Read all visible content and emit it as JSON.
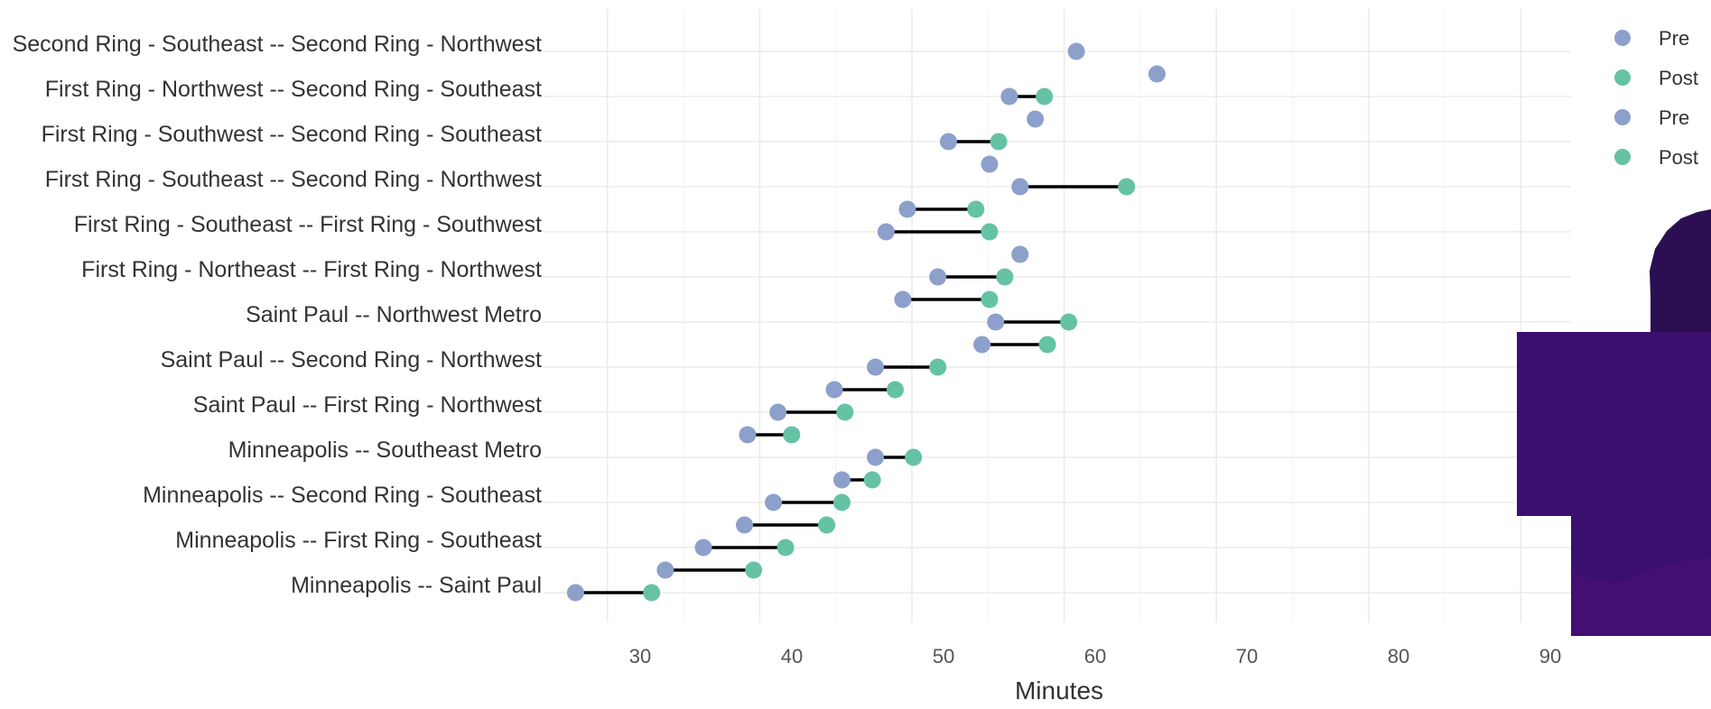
{
  "colors": {
    "pre": "#8da0cb",
    "post": "#66c2a5",
    "map_dark": "#2b0f52"
  },
  "legend": [
    {
      "label": "Pre",
      "color": "#8da0cb"
    },
    {
      "label": "Post",
      "color": "#66c2a5"
    },
    {
      "label": "Pre",
      "color": "#8da0cb"
    },
    {
      "label": "Post",
      "color": "#66c2a5"
    }
  ],
  "chart_data": {
    "type": "dumbbell",
    "xlabel": "Minutes",
    "ylabel": "",
    "xlim": [
      25.8,
      93.3
    ],
    "xticks": [
      30,
      40,
      50,
      60,
      70,
      80,
      90
    ],
    "grid": true,
    "legend_position": "top-right",
    "row_labels": [
      "Second Ring - Southeast -- Second Ring - Northwest",
      "First Ring - Northwest -- Second Ring - Southeast",
      "First Ring - Southwest -- Second Ring - Southeast",
      "First Ring - Southeast -- Second Ring - Northwest",
      "First Ring - Southeast -- First Ring - Southwest",
      "First Ring - Northeast -- First Ring - Northwest",
      "Saint Paul -- Northwest Metro",
      "Saint Paul -- Second Ring - Northwest",
      "Saint Paul -- First Ring - Northwest",
      "Minneapolis -- Southeast Metro",
      "Minneapolis -- Second Ring - Southeast",
      "Minneapolis -- First Ring - Southeast",
      "Minneapolis -- Saint Paul"
    ],
    "points": [
      {
        "row": 0,
        "pre": 60.8,
        "post": null
      },
      {
        "row": 1,
        "pre": 66.1,
        "post": null
      },
      {
        "row": 2,
        "pre": 56.4,
        "post": 58.7
      },
      {
        "row": 3,
        "pre": 58.1,
        "post": null
      },
      {
        "row": 4,
        "pre": 52.4,
        "post": 55.7
      },
      {
        "row": 5,
        "pre": 55.1,
        "post": null
      },
      {
        "row": 6,
        "pre": 57.1,
        "post": 64.1
      },
      {
        "row": 7,
        "pre": 49.7,
        "post": 54.2
      },
      {
        "row": 8,
        "pre": 48.3,
        "post": 55.1
      },
      {
        "row": 9,
        "pre": 57.1,
        "post": null
      },
      {
        "row": 10,
        "pre": 51.7,
        "post": 56.1
      },
      {
        "row": 11,
        "pre": 49.4,
        "post": 55.1
      },
      {
        "row": 12,
        "pre": 55.5,
        "post": 60.3
      },
      {
        "row": 13,
        "pre": 54.6,
        "post": 58.9
      },
      {
        "row": 14,
        "pre": 47.6,
        "post": 51.7
      },
      {
        "row": 15,
        "pre": 44.9,
        "post": 48.9
      },
      {
        "row": 16,
        "pre": 41.2,
        "post": 45.6
      },
      {
        "row": 17,
        "pre": 39.2,
        "post": 42.1
      },
      {
        "row": 18,
        "pre": 47.6,
        "post": 50.1
      },
      {
        "row": 19,
        "pre": 45.4,
        "post": 47.4
      },
      {
        "row": 20,
        "pre": 40.9,
        "post": 45.4
      },
      {
        "row": 21,
        "pre": 39.0,
        "post": 44.4
      },
      {
        "row": 22,
        "pre": 36.3,
        "post": 41.7
      },
      {
        "row": 23,
        "pre": 33.8,
        "post": 39.6
      },
      {
        "row": 24,
        "pre": 27.9,
        "post": 32.9
      }
    ]
  }
}
